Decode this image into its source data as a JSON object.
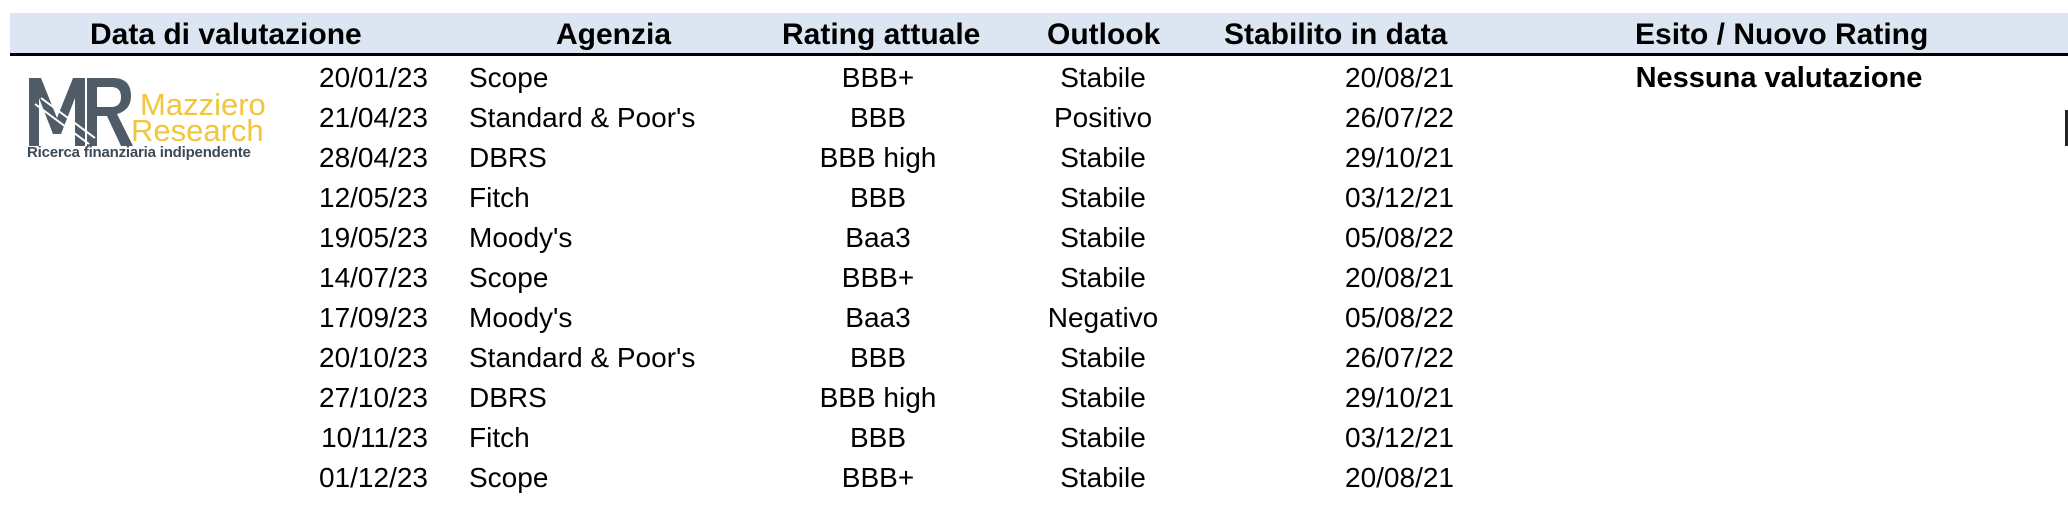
{
  "headers": {
    "date": "Data di valutazione",
    "agency": "Agenzia",
    "rating": "Rating attuale",
    "outlook": "Outlook",
    "since": "Stabilito in data",
    "result": "Esito / Nuovo Rating"
  },
  "logo": {
    "word1": "Mazziero",
    "word2": "Research",
    "tagline": "Ricerca finanziaria indipendente",
    "colors": {
      "mark": "#4f5b66",
      "accent": "#f0c63c"
    }
  },
  "rows": [
    {
      "date": "20/01/23",
      "agency": "Scope",
      "rating": "BBB+",
      "outlook": "Stabile",
      "since": "20/08/21",
      "result": "Nessuna valutazione"
    },
    {
      "date": "21/04/23",
      "agency": "Standard & Poor's",
      "rating": "BBB",
      "outlook": "Positivo",
      "since": "26/07/22",
      "result": ""
    },
    {
      "date": "28/04/23",
      "agency": "DBRS",
      "rating": "BBB high",
      "outlook": "Stabile",
      "since": "29/10/21",
      "result": ""
    },
    {
      "date": "12/05/23",
      "agency": "Fitch",
      "rating": "BBB",
      "outlook": "Stabile",
      "since": "03/12/21",
      "result": ""
    },
    {
      "date": "19/05/23",
      "agency": "Moody's",
      "rating": "Baa3",
      "outlook": "Stabile",
      "since": "05/08/22",
      "result": ""
    },
    {
      "date": "14/07/23",
      "agency": "Scope",
      "rating": "BBB+",
      "outlook": "Stabile",
      "since": "20/08/21",
      "result": ""
    },
    {
      "date": "17/09/23",
      "agency": "Moody's",
      "rating": "Baa3",
      "outlook": "Negativo",
      "since": "05/08/22",
      "result": ""
    },
    {
      "date": "20/10/23",
      "agency": "Standard & Poor's",
      "rating": "BBB",
      "outlook": "Stabile",
      "since": "26/07/22",
      "result": ""
    },
    {
      "date": "27/10/23",
      "agency": "DBRS",
      "rating": "BBB high",
      "outlook": "Stabile",
      "since": "29/10/21",
      "result": ""
    },
    {
      "date": "10/11/23",
      "agency": "Fitch",
      "rating": "BBB",
      "outlook": "Stabile",
      "since": "03/12/21",
      "result": ""
    },
    {
      "date": "01/12/23",
      "agency": "Scope",
      "rating": "BBB+",
      "outlook": "Stabile",
      "since": "20/08/21",
      "result": ""
    }
  ]
}
